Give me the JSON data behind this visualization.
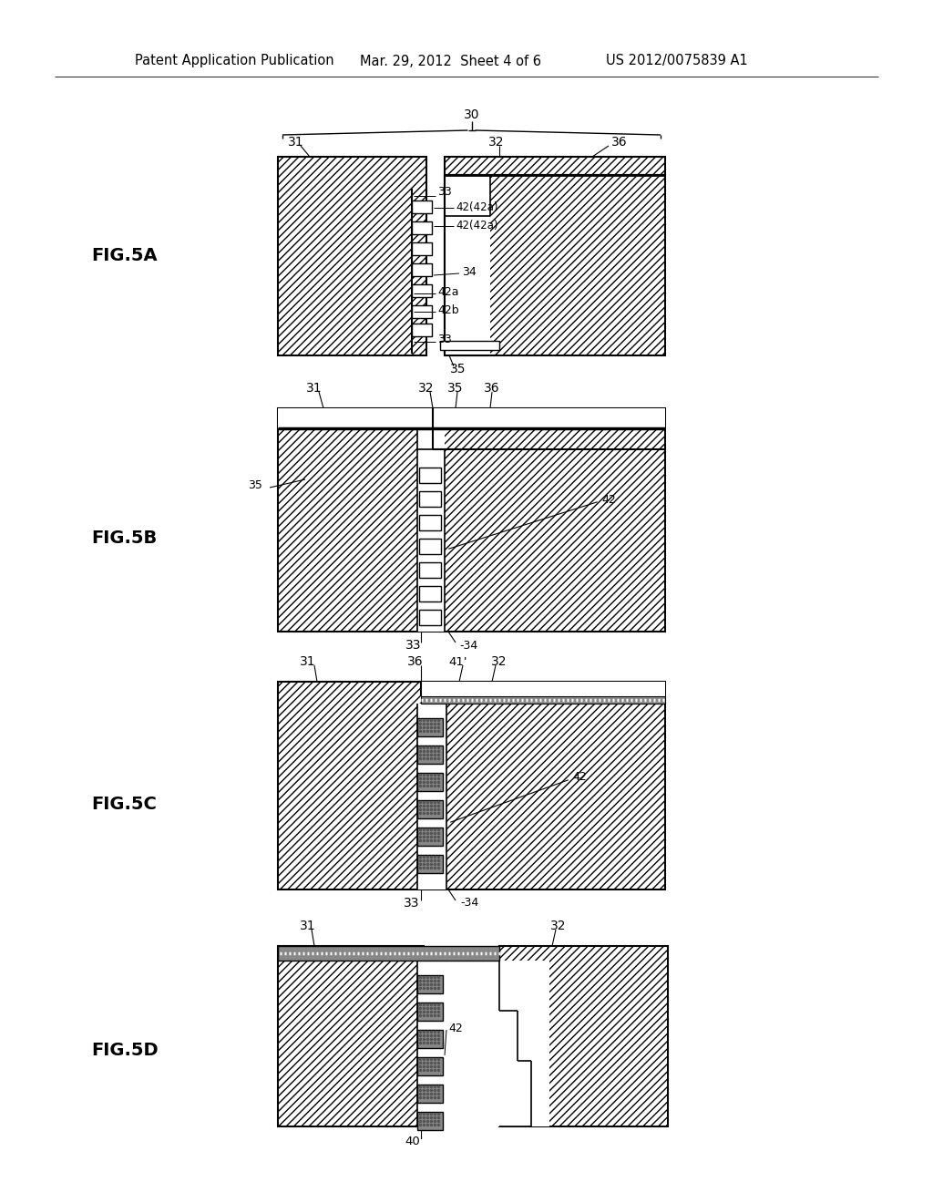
{
  "bg_color": "#ffffff",
  "header_text1": "Patent Application Publication",
  "header_text2": "Mar. 29, 2012  Sheet 4 of 6",
  "header_text3": "US 2012/0075839 A1",
  "hatch": "////",
  "ec": "#000000"
}
